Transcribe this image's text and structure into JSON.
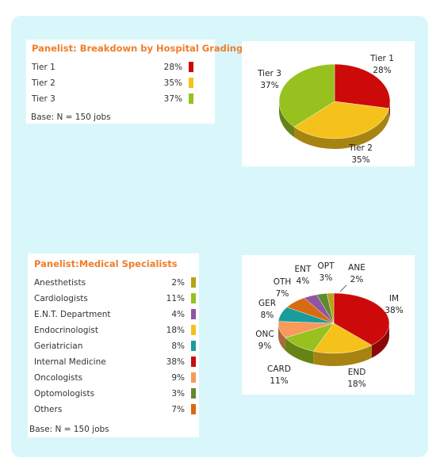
{
  "chart_data": [
    {
      "type": "pie",
      "title": "Panelist: Breakdown by Hospital Grading",
      "base_note": "Base: N = 150 jobs",
      "slices": [
        {
          "label": "Tier 1",
          "table_label": "Tier 1",
          "value": 28,
          "value_label": "28%",
          "color": "#cc0a0a"
        },
        {
          "label": "Tier 2",
          "table_label": "Tier 2",
          "value": 35,
          "value_label": "35%",
          "color": "#f5c21b"
        },
        {
          "label": "Tier 3",
          "table_label": "Tier 3",
          "value": 37,
          "value_label": "37%",
          "color": "#96c11f"
        }
      ]
    },
    {
      "type": "pie",
      "title": "Panelist:Medical Specialists",
      "base_note": "Base: N = 150 jobs",
      "slices": [
        {
          "label": "IM",
          "table_label": "Internal Medicine",
          "value": 38,
          "value_label": "38%",
          "color": "#cc0a0a"
        },
        {
          "label": "END",
          "table_label": "Endocrinologist",
          "value": 18,
          "value_label": "18%",
          "color": "#f5c21b"
        },
        {
          "label": "CARD",
          "table_label": "Cardiologists",
          "value": 11,
          "value_label": "11%",
          "color": "#96c11f"
        },
        {
          "label": "ONC",
          "table_label": "Oncologists",
          "value": 9,
          "value_label": "9%",
          "color": "#f89a5a"
        },
        {
          "label": "GER",
          "table_label": "Geriatrician",
          "value": 8,
          "value_label": "8%",
          "color": "#1a9c9c"
        },
        {
          "label": "OTH",
          "table_label": "Others",
          "value": 7,
          "value_label": "7%",
          "color": "#d86a12"
        },
        {
          "label": "ENT",
          "table_label": "E.N.T. Department",
          "value": 4,
          "value_label": "4%",
          "color": "#9055a2"
        },
        {
          "label": "OPT",
          "table_label": "Optomologists",
          "value": 3,
          "value_label": "3%",
          "color": "#5f8a2e"
        },
        {
          "label": "ANE",
          "table_label": "Anesthetists",
          "value": 2,
          "value_label": "2%",
          "color": "#b5a414"
        }
      ],
      "table_order": [
        "ANE",
        "CARD",
        "ENT",
        "END",
        "GER",
        "IM",
        "ONC",
        "OPT",
        "OTH"
      ]
    }
  ]
}
